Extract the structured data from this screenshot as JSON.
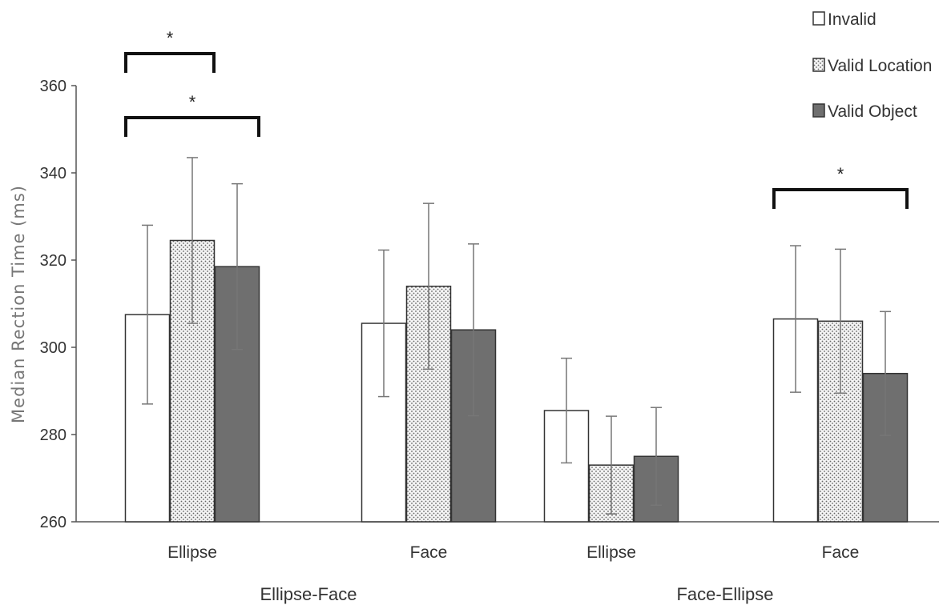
{
  "chart_data": {
    "type": "bar",
    "ylabel": "Median Rection Time (ms)",
    "ylim": [
      260,
      360
    ],
    "yticks": [
      "260",
      "280",
      "300",
      "320",
      "340",
      "360"
    ],
    "grid": false,
    "legend_position": "top-right",
    "groups": [
      {
        "label": "Ellipse-Face",
        "categories": [
          "Ellipse",
          "Face"
        ]
      },
      {
        "label": "Face-Ellipse",
        "categories": [
          "Ellipse",
          "Face"
        ]
      }
    ],
    "categories": [
      "Ellipse",
      "Face",
      "Ellipse",
      "Face"
    ],
    "series": [
      {
        "name": "Invalid",
        "values": [
          307.5,
          305.5,
          285.5,
          306.5
        ],
        "errors": [
          20.5,
          16.8,
          12.0,
          16.8
        ],
        "fill": "#ffffff",
        "pattern": "none"
      },
      {
        "name": "Valid Location",
        "values": [
          324.5,
          314.0,
          273.0,
          306.0
        ],
        "errors": [
          19.0,
          19.0,
          11.2,
          16.5
        ],
        "fill": "#dddddd",
        "pattern": "dots"
      },
      {
        "name": "Valid Object",
        "values": [
          318.5,
          304.0,
          275.0,
          294.0
        ],
        "errors": [
          19.0,
          19.7,
          11.2,
          14.2
        ],
        "fill": "#6f6f6f",
        "pattern": "none"
      }
    ],
    "significance": [
      {
        "category_index": 0,
        "from_series": 0,
        "to_series": 1,
        "label": "*"
      },
      {
        "category_index": 0,
        "from_series": 0,
        "to_series": 2,
        "label": "*"
      },
      {
        "category_index": 3,
        "from_series": 0,
        "to_series": 2,
        "label": "*"
      }
    ]
  },
  "colors": {
    "axis": "#555555",
    "bar_stroke": "#333333",
    "error_bar": "#777777",
    "bracket": "#111111"
  }
}
